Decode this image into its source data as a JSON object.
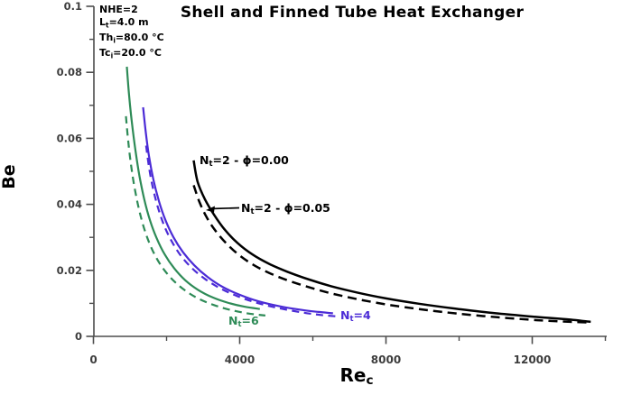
{
  "title": "Shell and Finned Tube Heat Exchanger",
  "conditions": {
    "lines": [
      [
        {
          "text": "NHE=2"
        }
      ],
      [
        {
          "text": "L"
        },
        {
          "text": "t",
          "sub": true
        },
        {
          "text": "=4.0 m"
        }
      ],
      [
        {
          "text": "Th"
        },
        {
          "text": "i",
          "sub": true
        },
        {
          "text": "=80.0 °C"
        }
      ],
      [
        {
          "text": "Tc"
        },
        {
          "text": "i",
          "sub": true
        },
        {
          "text": "=20.0 °C"
        }
      ]
    ]
  },
  "axes": {
    "x": {
      "label_segments": [
        {
          "text": "Re"
        },
        {
          "text": "c",
          "sub": true
        }
      ],
      "min": 0,
      "max": 14000,
      "major_ticks": [
        0,
        4000,
        8000,
        12000
      ],
      "minor_ticks": [
        2000,
        6000,
        10000,
        14000
      ],
      "tick_labels": [
        "0",
        "4000",
        "8000",
        "12000"
      ]
    },
    "y": {
      "label": "Be",
      "min": 0,
      "max": 0.1,
      "major_ticks": [
        0,
        0.02,
        0.04,
        0.06,
        0.08,
        0.1
      ],
      "minor_ticks": [
        0.01,
        0.03,
        0.05,
        0.07,
        0.09
      ],
      "tick_labels": [
        "0",
        "0.02",
        "0.04",
        "0.06",
        "0.08",
        "0.1"
      ]
    }
  },
  "curve_labels": [
    {
      "id": "lbl-nt2-phi000",
      "color": "#000000",
      "segments": [
        {
          "text": "N"
        },
        {
          "text": "t",
          "sub": true
        },
        {
          "text": "=2 - ϕ=0.00"
        }
      ]
    },
    {
      "id": "lbl-nt2-phi005",
      "color": "#000000",
      "segments": [
        {
          "text": "N"
        },
        {
          "text": "t",
          "sub": true
        },
        {
          "text": "=2 - ϕ=0.05"
        }
      ]
    },
    {
      "id": "lbl-nt4",
      "color": "#4b2bd6",
      "segments": [
        {
          "text": "N"
        },
        {
          "text": "t",
          "sub": true
        },
        {
          "text": "=4"
        }
      ]
    },
    {
      "id": "lbl-nt6",
      "color": "#2e8b57",
      "segments": [
        {
          "text": "N"
        },
        {
          "text": "t",
          "sub": true
        },
        {
          "text": "=6"
        }
      ]
    }
  ],
  "colors": {
    "black": "#000000",
    "blue": "#4b2bd6",
    "green": "#2e8b57",
    "axis": "#4d4d4d",
    "tick_text": "#3d3d3d"
  },
  "chart_data": {
    "type": "line",
    "title": "Shell and Finned Tube Heat Exchanger",
    "xlabel": "Re_c",
    "ylabel": "Be",
    "xlim": [
      0,
      14000
    ],
    "ylim": [
      0,
      0.1
    ],
    "grid": false,
    "legend_position": "inline-annotations",
    "annotations": [
      "NHE=2",
      "Lt=4.0 m",
      "Thi=80.0 °C",
      "Tci=20.0 °C",
      "Nt=2 - ϕ=0.00",
      "Nt=2 - ϕ=0.05",
      "Nt=4",
      "Nt=6"
    ],
    "series": [
      {
        "name": "Nt=2, ϕ=0.00",
        "color": "#000000",
        "line_style": "solid",
        "points": [
          [
            2740,
            0.0533
          ],
          [
            2850,
            0.0468
          ],
          [
            3050,
            0.0415
          ],
          [
            3300,
            0.0368
          ],
          [
            3600,
            0.0322
          ],
          [
            3950,
            0.0282
          ],
          [
            4350,
            0.0248
          ],
          [
            4800,
            0.022
          ],
          [
            5300,
            0.0196
          ],
          [
            5900,
            0.0172
          ],
          [
            6500,
            0.0152
          ],
          [
            7200,
            0.0133
          ],
          [
            8000,
            0.0115
          ],
          [
            8900,
            0.0099
          ],
          [
            9900,
            0.0084
          ],
          [
            11000,
            0.007
          ],
          [
            12100,
            0.0059
          ],
          [
            13000,
            0.0051
          ],
          [
            13600,
            0.0044
          ]
        ]
      },
      {
        "name": "Nt=2, ϕ=0.05",
        "color": "#000000",
        "line_style": "dashed",
        "points": [
          [
            2740,
            0.0458
          ],
          [
            2900,
            0.0407
          ],
          [
            3100,
            0.036
          ],
          [
            3350,
            0.0318
          ],
          [
            3650,
            0.028
          ],
          [
            4000,
            0.0245
          ],
          [
            4400,
            0.0215
          ],
          [
            4850,
            0.019
          ],
          [
            5350,
            0.0168
          ],
          [
            5950,
            0.0147
          ],
          [
            6550,
            0.0129
          ],
          [
            7250,
            0.0112
          ],
          [
            8050,
            0.0096
          ],
          [
            8950,
            0.0082
          ],
          [
            9950,
            0.0069
          ],
          [
            11050,
            0.0058
          ],
          [
            12150,
            0.0049
          ],
          [
            13050,
            0.0044
          ],
          [
            13600,
            0.0042
          ]
        ]
      },
      {
        "name": "Nt=4, ϕ=0.00",
        "color": "#4b2bd6",
        "line_style": "solid",
        "points": [
          [
            1358,
            0.0694
          ],
          [
            1430,
            0.062
          ],
          [
            1520,
            0.0545
          ],
          [
            1640,
            0.0475
          ],
          [
            1790,
            0.041
          ],
          [
            1970,
            0.0352
          ],
          [
            2190,
            0.03
          ],
          [
            2450,
            0.0255
          ],
          [
            2760,
            0.0215
          ],
          [
            3120,
            0.018
          ],
          [
            3530,
            0.015
          ],
          [
            4000,
            0.0126
          ],
          [
            4520,
            0.0106
          ],
          [
            5100,
            0.0091
          ],
          [
            5700,
            0.008
          ],
          [
            6150,
            0.0074
          ],
          [
            6550,
            0.007
          ]
        ]
      },
      {
        "name": "Nt=4, ϕ=0.05",
        "color": "#4b2bd6",
        "line_style": "dashed",
        "points": [
          [
            1440,
            0.0578
          ],
          [
            1520,
            0.0512
          ],
          [
            1630,
            0.0448
          ],
          [
            1770,
            0.0388
          ],
          [
            1940,
            0.0334
          ],
          [
            2150,
            0.0286
          ],
          [
            2400,
            0.0243
          ],
          [
            2700,
            0.0206
          ],
          [
            3050,
            0.0174
          ],
          [
            3460,
            0.0146
          ],
          [
            3930,
            0.0122
          ],
          [
            4460,
            0.0102
          ],
          [
            5050,
            0.0086
          ],
          [
            5680,
            0.0073
          ],
          [
            6200,
            0.0065
          ],
          [
            6700,
            0.006
          ]
        ]
      },
      {
        "name": "Nt=6, ϕ=0.00",
        "color": "#2e8b57",
        "line_style": "solid",
        "points": [
          [
            914,
            0.0817
          ],
          [
            975,
            0.073
          ],
          [
            1055,
            0.0645
          ],
          [
            1150,
            0.0562
          ],
          [
            1260,
            0.0485
          ],
          [
            1390,
            0.0415
          ],
          [
            1545,
            0.0352
          ],
          [
            1730,
            0.0297
          ],
          [
            1950,
            0.0248
          ],
          [
            2210,
            0.0206
          ],
          [
            2510,
            0.017
          ],
          [
            2860,
            0.0141
          ],
          [
            3260,
            0.0118
          ],
          [
            3700,
            0.0101
          ],
          [
            4130,
            0.009
          ],
          [
            4550,
            0.0083
          ]
        ]
      },
      {
        "name": "Nt=6, ϕ=0.05",
        "color": "#2e8b57",
        "line_style": "dashed",
        "points": [
          [
            889,
            0.0667
          ],
          [
            950,
            0.0592
          ],
          [
            1030,
            0.0518
          ],
          [
            1125,
            0.045
          ],
          [
            1240,
            0.0388
          ],
          [
            1375,
            0.0331
          ],
          [
            1535,
            0.0281
          ],
          [
            1725,
            0.0237
          ],
          [
            1950,
            0.0199
          ],
          [
            2215,
            0.0166
          ],
          [
            2520,
            0.0138
          ],
          [
            2880,
            0.0114
          ],
          [
            3290,
            0.0095
          ],
          [
            3720,
            0.0081
          ],
          [
            4200,
            0.007
          ],
          [
            4700,
            0.0063
          ]
        ]
      }
    ]
  }
}
